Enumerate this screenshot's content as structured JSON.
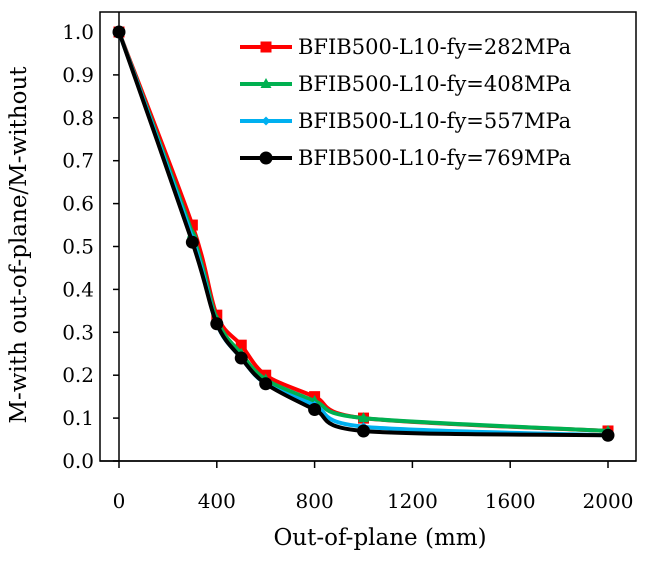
{
  "chart_data": {
    "type": "line",
    "title": "",
    "xlabel": "Out-of-plane (mm)",
    "ylabel": "M-with out-of-plane/M-without",
    "xlim": [
      0,
      2000
    ],
    "ylim": [
      0,
      1.0
    ],
    "xticks": [
      0,
      400,
      800,
      1200,
      1600,
      2000
    ],
    "xtick_labels": [
      "0",
      "400",
      "800",
      "1200",
      "1600",
      "2000"
    ],
    "yticks": [
      0.0,
      0.1,
      0.2,
      0.3,
      0.4,
      0.5,
      0.6,
      0.7,
      0.8,
      0.9,
      1.0
    ],
    "ytick_labels": [
      "0.0",
      "0.1",
      "0.2",
      "0.3",
      "0.4",
      "0.5",
      "0.6",
      "0.7",
      "0.8",
      "0.9",
      "1.0"
    ],
    "grid": false,
    "legend_position": "top-right",
    "x": [
      0,
      300,
      400,
      500,
      600,
      800,
      1000,
      2000
    ],
    "series": [
      {
        "name": "BFIB500-L10-fy=282MPa",
        "color": "#ff0000",
        "marker": "square",
        "values": [
          1.0,
          0.55,
          0.34,
          0.27,
          0.2,
          0.15,
          0.1,
          0.07
        ]
      },
      {
        "name": "BFIB500-L10-fy=408MPa",
        "color": "#00b050",
        "marker": "triangle",
        "values": [
          1.0,
          0.53,
          0.33,
          0.25,
          0.19,
          0.14,
          0.1,
          0.07
        ]
      },
      {
        "name": "BFIB500-L10-fy=557MPa",
        "color": "#00b0f0",
        "marker": "diamond",
        "values": [
          1.0,
          0.52,
          0.32,
          0.24,
          0.18,
          0.13,
          0.08,
          0.06
        ]
      },
      {
        "name": "BFIB500-L10-fy=769MPa",
        "color": "#000000",
        "marker": "circle",
        "values": [
          1.0,
          0.51,
          0.32,
          0.24,
          0.18,
          0.12,
          0.07,
          0.06
        ]
      }
    ]
  }
}
